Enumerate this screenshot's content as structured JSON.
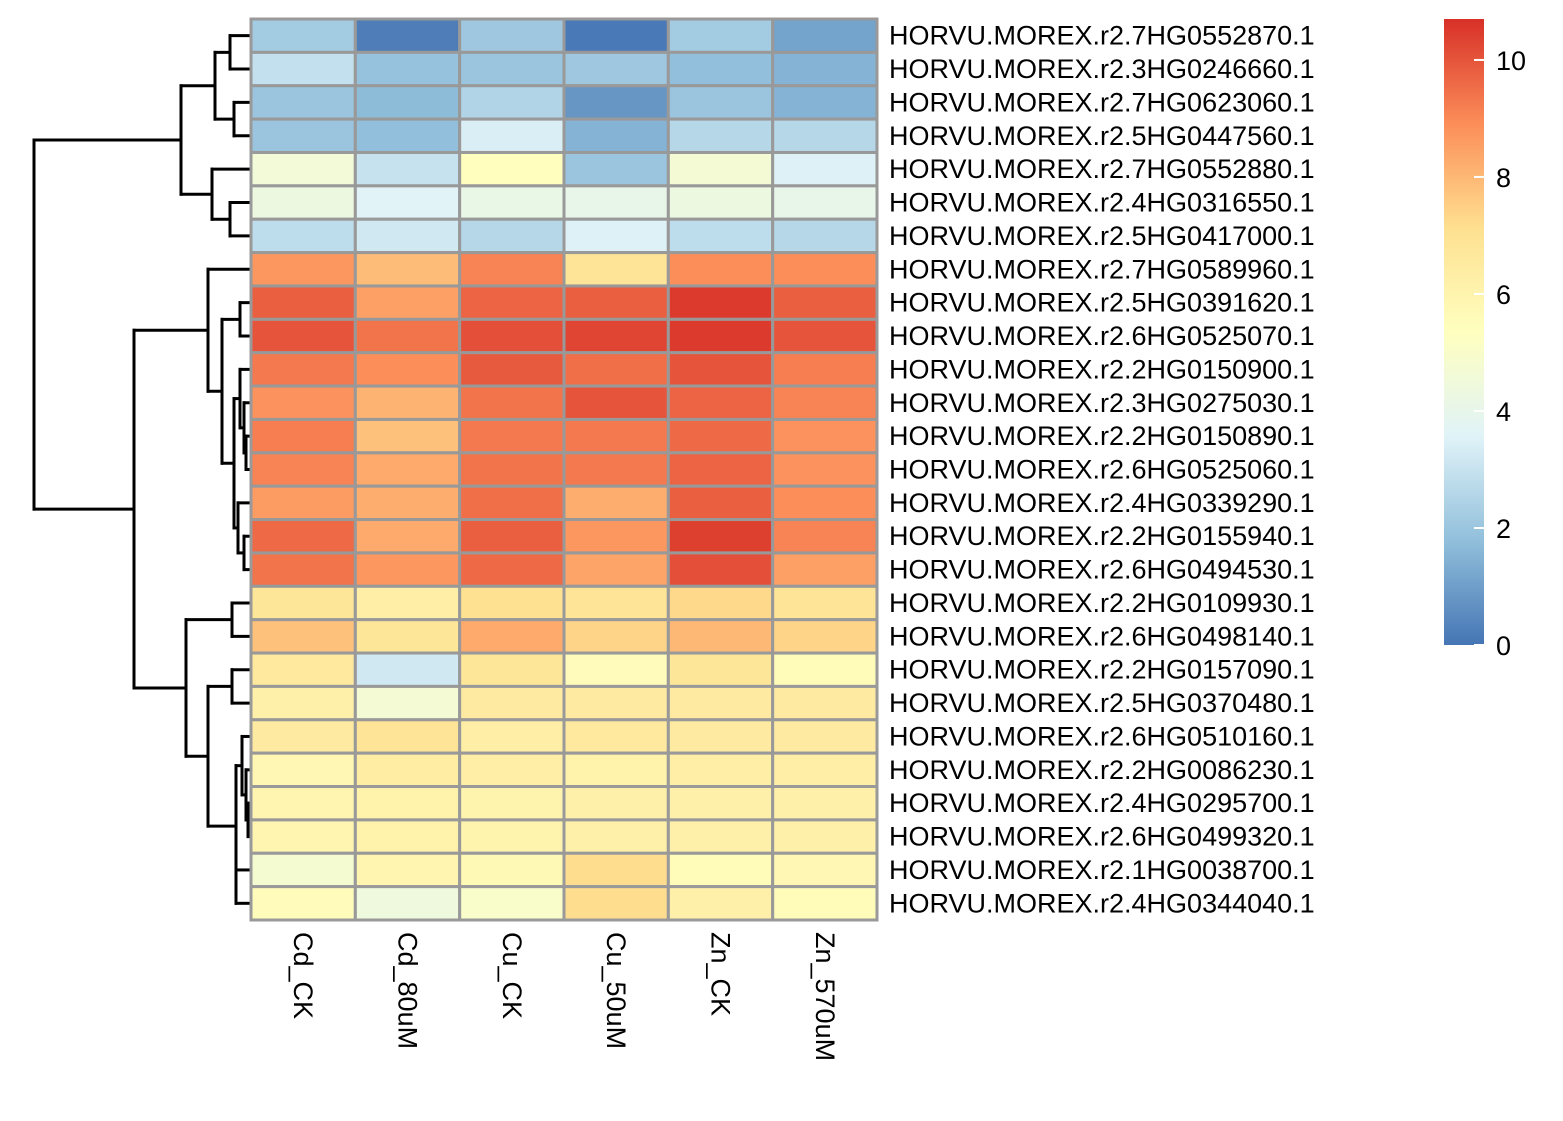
{
  "chart_data": {
    "type": "heatmap",
    "title": "",
    "columns": [
      "Cd_CK",
      "Cd_80uM",
      "Cu_CK",
      "Cu_50uM",
      "Zn_CK",
      "Zn_570uM"
    ],
    "rows": [
      "HORVU.MOREX.r2.7HG0552870.1",
      "HORVU.MOREX.r2.3HG0246660.1",
      "HORVU.MOREX.r2.7HG0623060.1",
      "HORVU.MOREX.r2.5HG0447560.1",
      "HORVU.MOREX.r2.7HG0552880.1",
      "HORVU.MOREX.r2.4HG0316550.1",
      "HORVU.MOREX.r2.5HG0417000.1",
      "HORVU.MOREX.r2.7HG0589960.1",
      "HORVU.MOREX.r2.5HG0391620.1",
      "HORVU.MOREX.r2.6HG0525070.1",
      "HORVU.MOREX.r2.2HG0150900.1",
      "HORVU.MOREX.r2.3HG0275030.1",
      "HORVU.MOREX.r2.2HG0150890.1",
      "HORVU.MOREX.r2.6HG0525060.1",
      "HORVU.MOREX.r2.4HG0339290.1",
      "HORVU.MOREX.r2.2HG0155940.1",
      "HORVU.MOREX.r2.6HG0494530.1",
      "HORVU.MOREX.r2.2HG0109930.1",
      "HORVU.MOREX.r2.6HG0498140.1",
      "HORVU.MOREX.r2.2HG0157090.1",
      "HORVU.MOREX.r2.5HG0370480.1",
      "HORVU.MOREX.r2.6HG0510160.1",
      "HORVU.MOREX.r2.2HG0086230.1",
      "HORVU.MOREX.r2.4HG0295700.1",
      "HORVU.MOREX.r2.6HG0499320.1",
      "HORVU.MOREX.r2.1HG0038700.1",
      "HORVU.MOREX.r2.4HG0344040.1"
    ],
    "values": [
      [
        2.2,
        0.2,
        2.1,
        0.1,
        2.2,
        1.1
      ],
      [
        2.9,
        1.9,
        2.0,
        2.1,
        1.8,
        1.5
      ],
      [
        2.0,
        1.7,
        2.5,
        0.8,
        2.0,
        1.5
      ],
      [
        2.0,
        1.8,
        3.4,
        1.5,
        2.6,
        2.6
      ],
      [
        4.6,
        3.0,
        5.4,
        2.0,
        4.7,
        3.5
      ],
      [
        4.3,
        3.6,
        4.1,
        4.0,
        4.3,
        4.0
      ],
      [
        2.8,
        3.2,
        2.6,
        3.5,
        2.8,
        2.6
      ],
      [
        8.7,
        7.9,
        9.1,
        6.9,
        8.9,
        8.9
      ],
      [
        9.8,
        8.5,
        9.7,
        9.8,
        10.5,
        9.8
      ],
      [
        10.0,
        9.4,
        10.1,
        10.3,
        10.5,
        10.0
      ],
      [
        9.3,
        8.9,
        9.9,
        9.5,
        10.0,
        9.2
      ],
      [
        8.8,
        8.1,
        9.4,
        10.0,
        9.7,
        9.1
      ],
      [
        9.2,
        7.8,
        9.3,
        9.3,
        9.6,
        8.8
      ],
      [
        9.1,
        8.3,
        9.4,
        9.3,
        9.7,
        8.8
      ],
      [
        8.6,
        8.2,
        9.5,
        8.2,
        9.8,
        8.9
      ],
      [
        9.6,
        8.3,
        9.8,
        8.7,
        10.4,
        9.1
      ],
      [
        9.4,
        8.7,
        9.6,
        8.4,
        10.1,
        8.5
      ],
      [
        6.8,
        6.3,
        7.1,
        6.9,
        7.3,
        6.9
      ],
      [
        7.8,
        6.8,
        8.3,
        7.4,
        8.0,
        7.4
      ],
      [
        6.6,
        3.2,
        6.8,
        5.5,
        6.8,
        5.6
      ],
      [
        6.2,
        4.7,
        6.5,
        6.5,
        6.5,
        6.5
      ],
      [
        6.5,
        6.9,
        6.3,
        6.6,
        6.5,
        6.5
      ],
      [
        5.8,
        6.4,
        6.3,
        6.1,
        6.3,
        6.3
      ],
      [
        5.9,
        6.1,
        6.0,
        6.2,
        6.2,
        6.2
      ],
      [
        5.9,
        6.1,
        6.0,
        6.2,
        6.2,
        6.2
      ],
      [
        4.8,
        5.9,
        5.7,
        7.2,
        5.6,
        5.8
      ],
      [
        5.5,
        4.4,
        5.0,
        7.2,
        6.2,
        5.6
      ]
    ],
    "colorbar": {
      "range": [
        0,
        10.7
      ],
      "ticks": [
        0,
        2,
        4,
        6,
        8,
        10
      ],
      "colors": [
        "#4575B4",
        "#91BFDB",
        "#E0F3F8",
        "#FFFFBF",
        "#FEE090",
        "#FC8D59",
        "#D73027"
      ]
    },
    "cell_border_color": "#999999",
    "row_dendrogram": true,
    "legend_position": "right"
  }
}
